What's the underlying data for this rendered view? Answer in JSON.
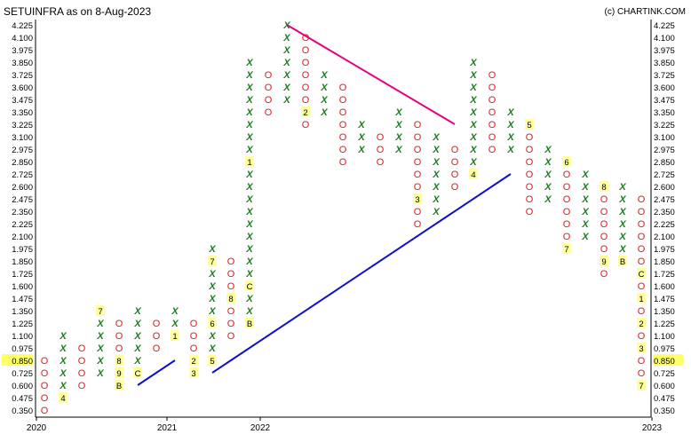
{
  "header": {
    "title": "SETUINFRA as on 8-Aug-2023",
    "credit": "(c) CHARTINK.COM"
  },
  "chart_data": {
    "type": "point-and-figure",
    "title": "SETUINFRA as on 8-Aug-2023",
    "box_size": 0.125,
    "y_ticks": [
      "0.350",
      "0.475",
      "0.600",
      "0.725",
      "0.850",
      "0.975",
      "1.100",
      "1.225",
      "1.350",
      "1.475",
      "1.600",
      "1.725",
      "1.850",
      "1.975",
      "2.100",
      "2.225",
      "2.350",
      "2.475",
      "2.600",
      "2.725",
      "2.850",
      "2.975",
      "3.100",
      "3.225",
      "3.350",
      "3.475",
      "3.600",
      "3.725",
      "3.850",
      "3.975",
      "4.100",
      "4.225"
    ],
    "ylim": [
      0.35,
      4.225
    ],
    "last_price": "0.850",
    "x_labels": [
      {
        "col": 0,
        "label": "2020"
      },
      {
        "col": 7,
        "label": "2021"
      },
      {
        "col": 12,
        "label": "2022"
      },
      {
        "col": 33,
        "label": "2023"
      }
    ],
    "columns": [
      {
        "type": "O",
        "top": 0.85,
        "bottom": 0.35
      },
      {
        "type": "X",
        "bottom": 0.475,
        "top": 1.1,
        "marks": [
          {
            "box": 0.475,
            "label": "4"
          }
        ]
      },
      {
        "type": "O",
        "top": 0.975,
        "bottom": 0.6
      },
      {
        "type": "X",
        "bottom": 0.725,
        "top": 1.35,
        "marks": [
          {
            "box": 1.35,
            "label": "7"
          }
        ]
      },
      {
        "type": "O",
        "top": 1.225,
        "bottom": 0.6,
        "marks": [
          {
            "box": 0.85,
            "label": "8"
          },
          {
            "box": 0.725,
            "label": "9"
          },
          {
            "box": 0.6,
            "label": "B"
          }
        ]
      },
      {
        "type": "X",
        "bottom": 0.725,
        "top": 1.35,
        "marks": [
          {
            "box": 0.725,
            "label": "C"
          }
        ]
      },
      {
        "type": "O",
        "top": 1.225,
        "bottom": 0.975
      },
      {
        "type": "X",
        "bottom": 1.1,
        "top": 1.35,
        "marks": [
          {
            "box": 1.1,
            "label": "1"
          }
        ]
      },
      {
        "type": "O",
        "top": 1.225,
        "bottom": 0.725,
        "marks": [
          {
            "box": 0.85,
            "label": "2"
          },
          {
            "box": 0.725,
            "label": "3"
          }
        ]
      },
      {
        "type": "X",
        "bottom": 0.85,
        "top": 1.975,
        "marks": [
          {
            "box": 0.85,
            "label": "5"
          },
          {
            "box": 1.225,
            "label": "6"
          },
          {
            "box": 1.85,
            "label": "7"
          }
        ]
      },
      {
        "type": "O",
        "top": 1.85,
        "bottom": 1.1,
        "marks": [
          {
            "box": 1.475,
            "label": "8"
          }
        ]
      },
      {
        "type": "X",
        "bottom": 1.225,
        "top": 3.85,
        "marks": [
          {
            "box": 1.225,
            "label": "B"
          },
          {
            "box": 1.6,
            "label": "C"
          },
          {
            "box": 2.85,
            "label": "1"
          }
        ]
      },
      {
        "type": "O",
        "top": 3.725,
        "bottom": 3.35
      },
      {
        "type": "X",
        "bottom": 3.475,
        "top": 4.225
      },
      {
        "type": "O",
        "top": 4.1,
        "bottom": 3.225,
        "marks": [
          {
            "box": 3.35,
            "label": "2"
          }
        ]
      },
      {
        "type": "X",
        "bottom": 3.35,
        "top": 3.725
      },
      {
        "type": "O",
        "top": 3.6,
        "bottom": 2.85
      },
      {
        "type": "X",
        "bottom": 2.975,
        "top": 3.225
      },
      {
        "type": "O",
        "top": 3.1,
        "bottom": 2.85
      },
      {
        "type": "X",
        "bottom": 2.975,
        "top": 3.35
      },
      {
        "type": "O",
        "top": 3.225,
        "bottom": 2.225,
        "marks": [
          {
            "box": 2.475,
            "label": "3"
          }
        ]
      },
      {
        "type": "X",
        "bottom": 2.35,
        "top": 3.1
      },
      {
        "type": "O",
        "top": 2.975,
        "bottom": 2.6
      },
      {
        "type": "X",
        "bottom": 2.725,
        "top": 3.85,
        "marks": [
          {
            "box": 2.725,
            "label": "4"
          }
        ]
      },
      {
        "type": "O",
        "top": 3.725,
        "bottom": 2.975
      },
      {
        "type": "X",
        "bottom": 2.975,
        "top": 3.35
      },
      {
        "type": "O",
        "top": 3.225,
        "bottom": 2.35,
        "marks": [
          {
            "box": 3.225,
            "label": "5"
          }
        ]
      },
      {
        "type": "X",
        "bottom": 2.475,
        "top": 2.975
      },
      {
        "type": "O",
        "top": 2.85,
        "bottom": 1.975,
        "marks": [
          {
            "box": 2.85,
            "label": "6"
          },
          {
            "box": 1.975,
            "label": "7"
          }
        ]
      },
      {
        "type": "X",
        "bottom": 2.1,
        "top": 2.725
      },
      {
        "type": "O",
        "top": 2.6,
        "bottom": 1.725,
        "marks": [
          {
            "box": 2.6,
            "label": "8"
          },
          {
            "box": 1.85,
            "label": "9"
          }
        ]
      },
      {
        "type": "X",
        "bottom": 1.85,
        "top": 2.6,
        "marks": [
          {
            "box": 1.85,
            "label": "B"
          }
        ]
      },
      {
        "type": "O",
        "top": 2.475,
        "bottom": 0.6,
        "marks": [
          {
            "box": 1.725,
            "label": "C"
          },
          {
            "box": 1.475,
            "label": "1"
          },
          {
            "box": 1.225,
            "label": "2"
          },
          {
            "box": 0.975,
            "label": "3"
          },
          {
            "box": 0.6,
            "label": "7"
          }
        ]
      }
    ],
    "trendlines": [
      {
        "color": "#e6007e",
        "from": {
          "col": 13,
          "price": 4.225
        },
        "to": {
          "col": 22,
          "price": 3.225
        }
      },
      {
        "color": "#1010cc",
        "from": {
          "col": 5,
          "price": 0.6
        },
        "to": {
          "col": 7,
          "price": 0.85
        }
      },
      {
        "color": "#1010cc",
        "from": {
          "col": 9,
          "price": 0.725
        },
        "to": {
          "col": 25,
          "price": 2.725
        }
      }
    ]
  },
  "colors": {
    "x_mark": "#1e7a1e",
    "o_mark": "#e01818",
    "label_bg": "#ffffa0",
    "last_price_bg": "#ffff66",
    "axis": "#000000"
  }
}
